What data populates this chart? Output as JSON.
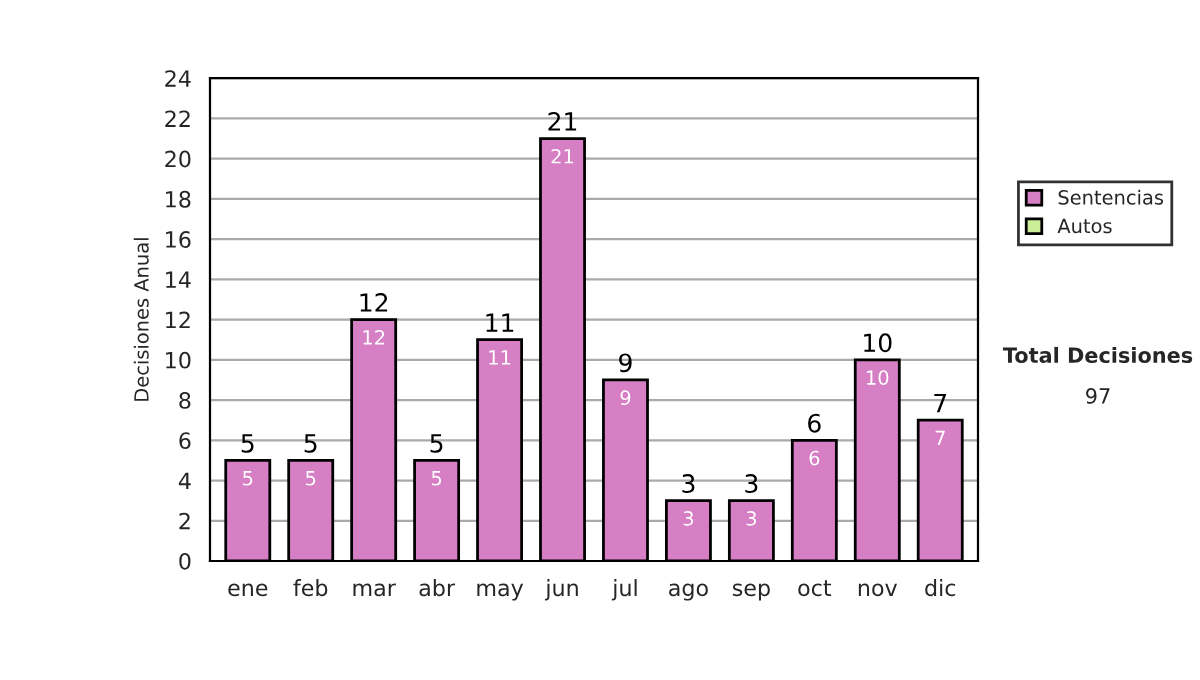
{
  "chart_data": {
    "type": "bar",
    "ylabel": "Decisiones Anual",
    "categories": [
      "ene",
      "feb",
      "mar",
      "abr",
      "may",
      "jun",
      "jul",
      "ago",
      "sep",
      "oct",
      "nov",
      "dic"
    ],
    "series": [
      {
        "name": "Sentencias",
        "color": "#d77fc4",
        "values": [
          5,
          5,
          12,
          5,
          11,
          21,
          9,
          3,
          3,
          6,
          10,
          7
        ]
      },
      {
        "name": "Autos",
        "color": "#ccee99",
        "values": [
          null,
          null,
          null,
          null,
          null,
          null,
          null,
          null,
          null,
          null,
          null,
          null
        ]
      }
    ],
    "ylim": [
      0,
      24
    ],
    "yticks": [
      0,
      2,
      4,
      6,
      8,
      10,
      12,
      14,
      16,
      18,
      20,
      22,
      24
    ],
    "grid": "y",
    "legend": "right",
    "data_labels": true,
    "annotations": [
      "Total Decisiones",
      "97",
      {
        "text": "5",
        "x": "ene",
        "y": 5
      },
      {
        "text": "5",
        "x": "feb",
        "y": 5
      },
      {
        "text": "12",
        "x": "mar",
        "y": 12
      },
      {
        "text": "5",
        "x": "abr",
        "y": 5
      },
      {
        "text": "11",
        "x": "may",
        "y": 11
      },
      {
        "text": "21",
        "x": "jun",
        "y": 21
      },
      {
        "text": "9",
        "x": "jul",
        "y": 9
      },
      {
        "text": "3",
        "x": "ago",
        "y": 3
      },
      {
        "text": "3",
        "x": "sep",
        "y": 3
      },
      {
        "text": "6",
        "x": "oct",
        "y": 6
      },
      {
        "text": "10",
        "x": "nov",
        "y": 10
      },
      {
        "text": "7",
        "x": "dic",
        "y": 7
      }
    ]
  }
}
